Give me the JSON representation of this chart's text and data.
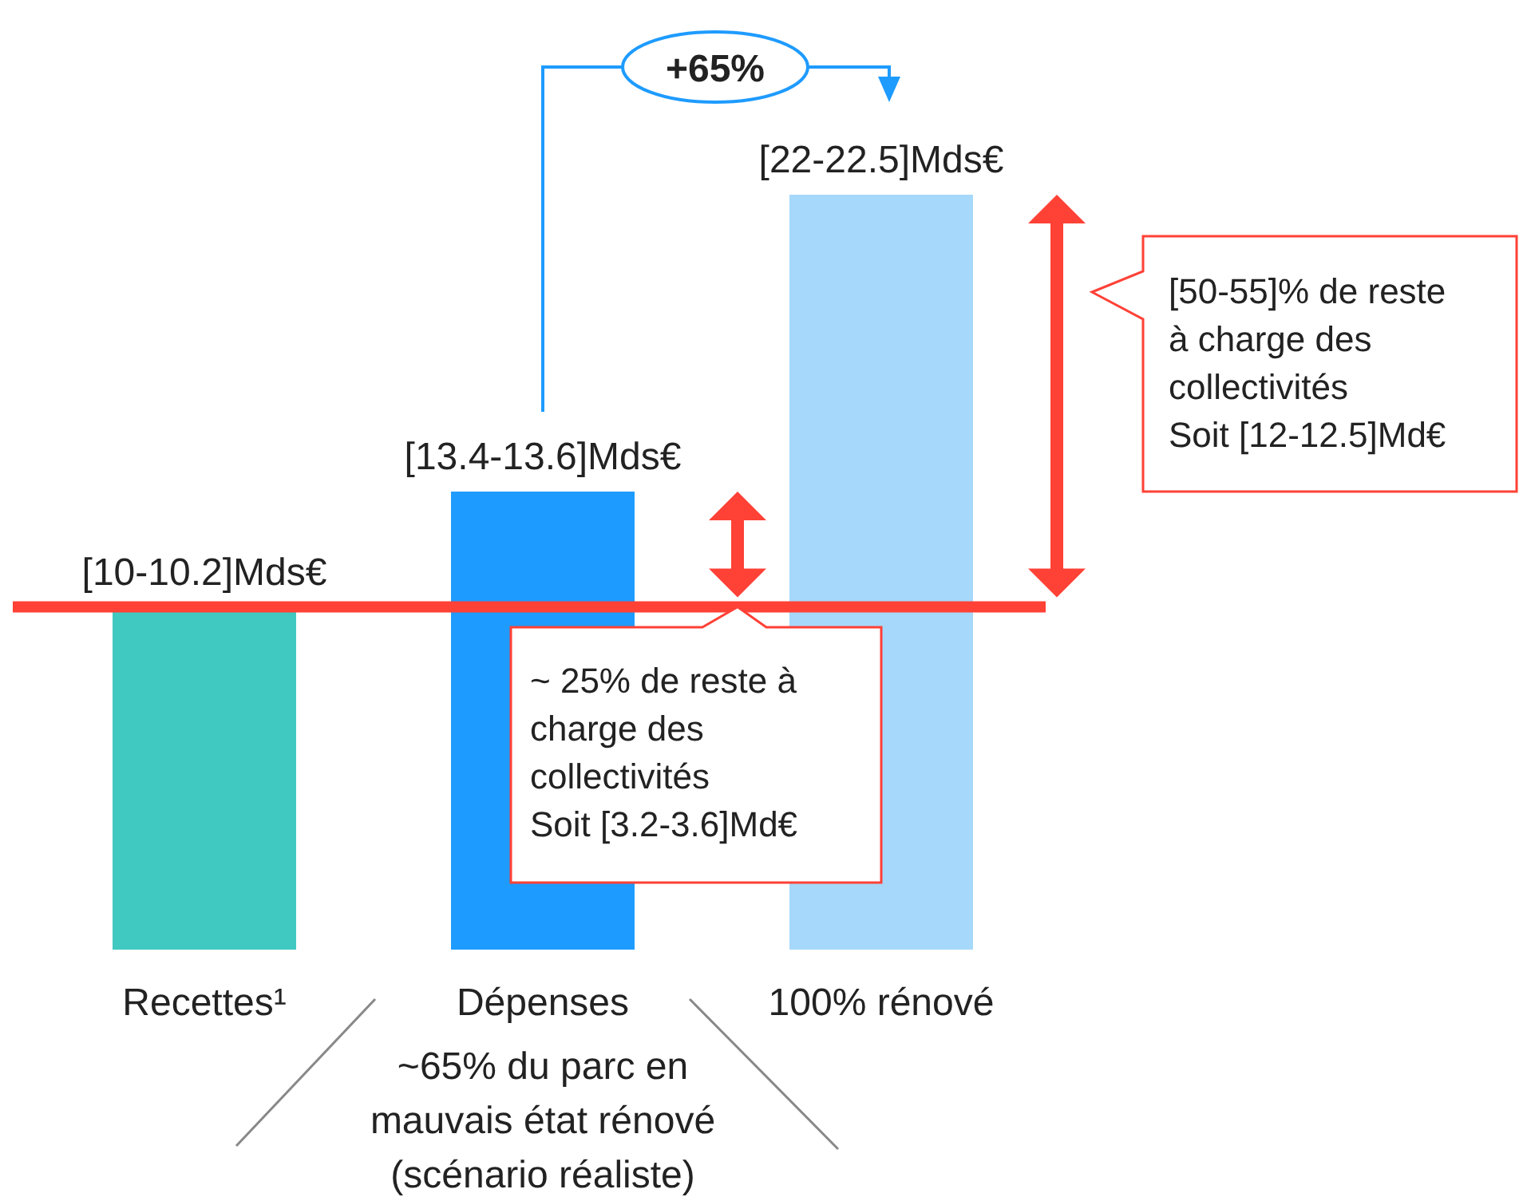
{
  "chart_data": {
    "type": "bar",
    "categories": [
      "Recettes¹",
      "Dépenses",
      "100% rénové"
    ],
    "values": [
      10.1,
      13.5,
      22.25
    ],
    "colors": [
      "#40c9c0",
      "#1e9bff",
      "#a6d8fb"
    ],
    "value_labels": [
      "[10-10.2]Mds€",
      "[13.4-13.6]Mds€",
      "[22-22.5]Mds€"
    ],
    "ref_lines": [
      {
        "axis": "y",
        "value": 10.1,
        "color": "#ff4136"
      }
    ],
    "annotations": [
      "+65%",
      "~ 25% de reste à\ncharge des\ncollectivités\nSoit [3.2-3.6]Md€",
      "[50-55]% de reste\nà charge des\ncollectivités\nSoit [12-12.5]Md€",
      "~65% du parc en\nmauvais état rénové\n(scénario réaliste)"
    ]
  }
}
